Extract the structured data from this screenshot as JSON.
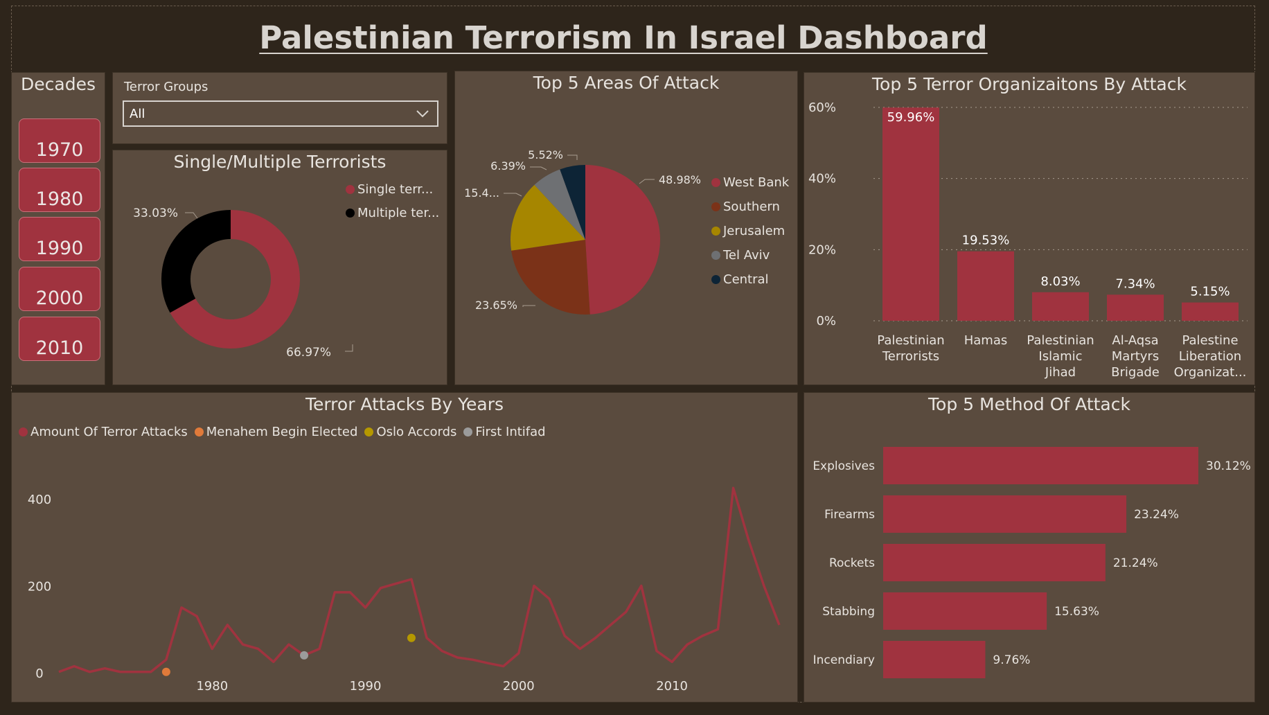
{
  "title": "Palestinian Terrorism In Israel Dashboard",
  "decades": {
    "title": "Decades",
    "items": [
      "1970",
      "1980",
      "1990",
      "2000",
      "2010"
    ]
  },
  "terror_groups": {
    "label": "Terror Groups",
    "selected": "All"
  },
  "colors": {
    "red": "#a0333f",
    "brown": "#7b3218",
    "gold": "#a68600",
    "gray": "#6e7073",
    "navy": "#0d2436",
    "black": "#000000",
    "orange": "#e07a3a",
    "olive": "#b59800",
    "light_gray": "#9b9b9b"
  },
  "single_multiple": {
    "title": "Single/Multiple Terrorists",
    "legend": [
      "Single terr...",
      "Multiple ter..."
    ],
    "labels": [
      "66.97%",
      "33.03%"
    ]
  },
  "top_areas": {
    "title": "Top 5 Areas Of Attack",
    "legend": [
      "West Bank",
      "Southern",
      "Jerusalem",
      "Tel Aviv",
      "Central"
    ],
    "labels": [
      "48.98%",
      "23.65%",
      "15.4...",
      "6.39%",
      "5.52%"
    ]
  },
  "top_orgs": {
    "title": "Top 5 Terror Organizaitons By Attack",
    "y_ticks": [
      "60%",
      "40%",
      "20%",
      "0%"
    ],
    "bar_labels": [
      "59.96%",
      "19.53%",
      "8.03%",
      "7.34%",
      "5.15%"
    ],
    "categories": [
      [
        "Palestinian",
        "Terrorists"
      ],
      [
        "Hamas"
      ],
      [
        "Palestinian",
        "Islamic",
        "Jihad"
      ],
      [
        "Al-Aqsa",
        "Martyrs",
        "Brigade"
      ],
      [
        "Palestine",
        "Liberation",
        "Organizat..."
      ]
    ]
  },
  "attacks_by_years": {
    "title": "Terror Attacks By Years",
    "legend": [
      "Amount Of Terror Attacks",
      "Menahem Begin Elected",
      "Oslo Accords",
      "First Intifad"
    ],
    "y_ticks": [
      "400",
      "200",
      "0"
    ],
    "x_ticks": [
      "1980",
      "1990",
      "2000",
      "2010"
    ]
  },
  "top_methods": {
    "title": "Top 5 Method Of Attack",
    "categories": [
      "Explosives",
      "Firearms",
      "Rockets",
      "Stabbing",
      "Incendiary"
    ],
    "labels": [
      "30.12%",
      "23.24%",
      "21.24%",
      "15.63%",
      "9.76%"
    ]
  },
  "chart_data": [
    {
      "type": "pie",
      "title": "Single/Multiple Terrorists",
      "categories": [
        "Single terr...",
        "Multiple ter..."
      ],
      "values": [
        66.97,
        33.03
      ]
    },
    {
      "type": "pie",
      "title": "Top 5 Areas Of Attack",
      "categories": [
        "West Bank",
        "Southern",
        "Jerusalem",
        "Tel Aviv",
        "Central"
      ],
      "values": [
        48.98,
        23.65,
        15.4,
        6.39,
        5.52
      ]
    },
    {
      "type": "bar",
      "title": "Top 5 Terror Organizaitons By Attack",
      "categories": [
        "Palestinian Terrorists",
        "Hamas",
        "Palestinian Islamic Jihad",
        "Al-Aqsa Martyrs Brigade",
        "Palestine Liberation Organizat..."
      ],
      "values": [
        59.96,
        19.53,
        8.03,
        7.34,
        5.15
      ],
      "ylim": [
        0,
        60
      ],
      "grid": true
    },
    {
      "type": "line",
      "title": "Terror Attacks By Years",
      "ylim": [
        0,
        450
      ],
      "xlim": [
        1970,
        2017
      ],
      "series": [
        {
          "name": "Amount Of Terror Attacks",
          "x": [
            1970,
            1971,
            1972,
            1973,
            1974,
            1975,
            1976,
            1977,
            1978,
            1979,
            1980,
            1981,
            1982,
            1983,
            1984,
            1985,
            1986,
            1987,
            1988,
            1989,
            1990,
            1991,
            1992,
            1993,
            1994,
            1995,
            1996,
            1997,
            1998,
            1999,
            2000,
            2001,
            2002,
            2003,
            2004,
            2005,
            2006,
            2007,
            2008,
            2009,
            2010,
            2011,
            2012,
            2013,
            2014,
            2015,
            2016,
            2017
          ],
          "y": [
            2,
            15,
            2,
            10,
            2,
            2,
            2,
            30,
            150,
            130,
            55,
            110,
            65,
            55,
            25,
            65,
            40,
            55,
            185,
            185,
            150,
            195,
            205,
            215,
            80,
            50,
            35,
            30,
            22,
            15,
            45,
            200,
            170,
            85,
            55,
            80,
            110,
            140,
            200,
            50,
            25,
            65,
            85,
            100,
            425,
            305,
            200,
            110
          ]
        },
        {
          "name": "Menahem Begin Elected",
          "x": [
            1977
          ],
          "y": [
            2
          ]
        },
        {
          "name": "Oslo Accords",
          "x": [
            1993
          ],
          "y": [
            80
          ]
        },
        {
          "name": "First Intifad",
          "x": [
            1986
          ],
          "y": [
            40
          ]
        }
      ]
    },
    {
      "type": "bar",
      "title": "Top 5 Method Of Attack",
      "categories": [
        "Explosives",
        "Firearms",
        "Rockets",
        "Stabbing",
        "Incendiary"
      ],
      "values": [
        30.12,
        23.24,
        21.24,
        15.63,
        9.76
      ]
    }
  ]
}
